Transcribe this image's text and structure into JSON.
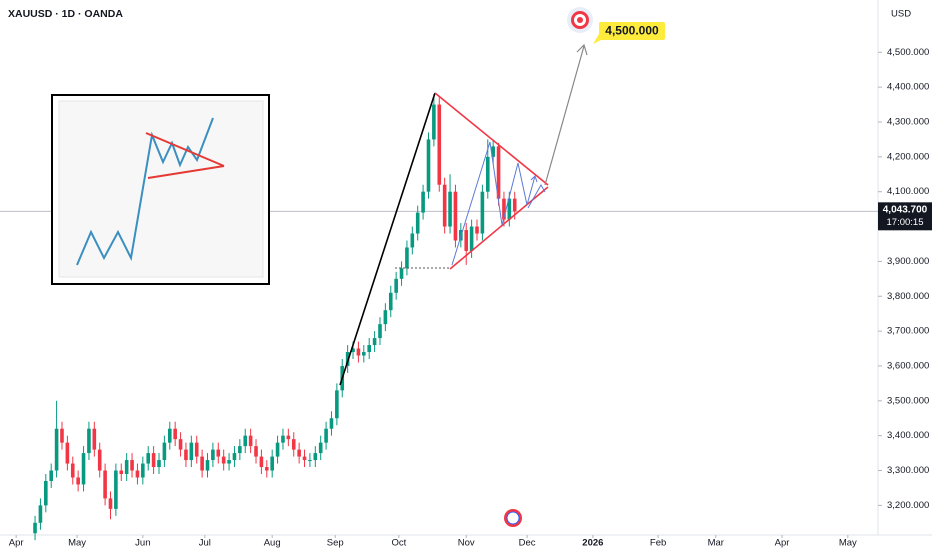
{
  "chart_data": {
    "type": "candlestick",
    "title": "XAUUSD · 1D · OANDA",
    "currency": "USD",
    "up_color": "#089981",
    "down_color": "#f23645",
    "x": [
      0,
      1,
      2,
      3,
      4,
      5,
      6,
      7,
      8,
      9,
      10,
      11,
      12,
      13,
      14,
      15,
      16,
      17,
      18,
      19,
      20,
      21,
      22,
      23,
      24,
      25,
      26,
      27,
      28,
      29,
      30,
      31,
      32,
      33,
      34,
      35,
      36,
      37,
      38,
      39,
      40,
      41,
      42,
      43,
      44,
      45,
      46,
      47,
      48,
      49,
      50,
      51,
      52,
      53,
      54,
      55,
      56,
      57,
      58,
      59,
      60,
      61,
      62,
      63,
      64,
      65,
      66,
      67,
      68,
      69,
      70,
      71,
      72,
      73,
      74,
      75,
      76,
      77,
      78,
      79,
      80,
      81,
      82,
      83,
      84,
      85,
      86,
      87,
      88,
      89
    ],
    "open": [
      3120,
      3150,
      3200,
      3270,
      3300,
      3420,
      3380,
      3320,
      3280,
      3260,
      3350,
      3420,
      3360,
      3300,
      3220,
      3190,
      3300,
      3290,
      3330,
      3300,
      3280,
      3320,
      3350,
      3310,
      3330,
      3380,
      3420,
      3390,
      3360,
      3330,
      3380,
      3340,
      3300,
      3330,
      3360,
      3340,
      3320,
      3330,
      3350,
      3370,
      3400,
      3370,
      3340,
      3310,
      3300,
      3340,
      3380,
      3400,
      3390,
      3360,
      3340,
      3330,
      3330,
      3350,
      3380,
      3420,
      3450,
      3530,
      3600,
      3640,
      3650,
      3630,
      3640,
      3660,
      3680,
      3720,
      3760,
      3810,
      3850,
      3880,
      3940,
      3980,
      4040,
      4100,
      4250,
      4350,
      4120,
      4000,
      4100,
      3960,
      3990,
      3930,
      4000,
      3980,
      4100,
      4200,
      4230,
      4080,
      4020,
      4080
    ],
    "high": [
      3170,
      3220,
      3290,
      3320,
      3500,
      3440,
      3400,
      3340,
      3300,
      3370,
      3440,
      3440,
      3380,
      3320,
      3240,
      3320,
      3320,
      3350,
      3350,
      3320,
      3340,
      3370,
      3370,
      3350,
      3400,
      3440,
      3440,
      3410,
      3380,
      3400,
      3400,
      3360,
      3350,
      3380,
      3380,
      3360,
      3350,
      3370,
      3390,
      3420,
      3420,
      3390,
      3360,
      3330,
      3360,
      3400,
      3420,
      3420,
      3410,
      3380,
      3360,
      3350,
      3370,
      3400,
      3440,
      3470,
      3550,
      3620,
      3660,
      3670,
      3670,
      3660,
      3680,
      3700,
      3740,
      3780,
      3830,
      3870,
      3900,
      3960,
      4000,
      4060,
      4120,
      4270,
      4380,
      4370,
      4140,
      4150,
      4120,
      4010,
      4010,
      4020,
      4020,
      4120,
      4250,
      4250,
      4240,
      4100,
      4100,
      4100
    ],
    "low": [
      3100,
      3130,
      3180,
      3250,
      3280,
      3360,
      3300,
      3260,
      3240,
      3240,
      3330,
      3340,
      3280,
      3200,
      3160,
      3170,
      3270,
      3270,
      3280,
      3260,
      3260,
      3300,
      3290,
      3290,
      3310,
      3360,
      3370,
      3340,
      3310,
      3310,
      3320,
      3280,
      3280,
      3310,
      3320,
      3300,
      3300,
      3310,
      3330,
      3350,
      3350,
      3320,
      3290,
      3280,
      3280,
      3320,
      3360,
      3370,
      3340,
      3320,
      3310,
      3310,
      3310,
      3330,
      3360,
      3400,
      3430,
      3510,
      3580,
      3620,
      3610,
      3610,
      3620,
      3640,
      3660,
      3700,
      3740,
      3790,
      3830,
      3860,
      3920,
      3960,
      4020,
      4080,
      4230,
      4100,
      3980,
      3980,
      3940,
      3940,
      3890,
      3910,
      3960,
      3960,
      4080,
      4180,
      4060,
      4000,
      4000,
      4020
    ],
    "close": [
      3150,
      3200,
      3270,
      3300,
      3420,
      3380,
      3320,
      3280,
      3260,
      3350,
      3420,
      3360,
      3300,
      3220,
      3190,
      3300,
      3290,
      3330,
      3300,
      3280,
      3320,
      3350,
      3310,
      3330,
      3380,
      3420,
      3390,
      3360,
      3330,
      3380,
      3340,
      3300,
      3330,
      3360,
      3340,
      3320,
      3330,
      3350,
      3370,
      3400,
      3370,
      3340,
      3310,
      3300,
      3340,
      3380,
      3400,
      3390,
      3360,
      3340,
      3330,
      3330,
      3350,
      3380,
      3420,
      3450,
      3530,
      3600,
      3640,
      3650,
      3630,
      3640,
      3660,
      3680,
      3720,
      3760,
      3810,
      3850,
      3880,
      3940,
      3980,
      4040,
      4100,
      4250,
      4350,
      4120,
      4000,
      4100,
      3960,
      3990,
      3930,
      4000,
      3980,
      4100,
      4200,
      4230,
      4080,
      4020,
      4080,
      4043.7
    ],
    "xlim": [
      -6.5,
      156.4
    ],
    "xticks": [
      {
        "value": -3.5,
        "label": "Apr"
      },
      {
        "value": 7.8,
        "label": "May"
      },
      {
        "value": 20,
        "label": "Jun"
      },
      {
        "value": 31.5,
        "label": "Jul"
      },
      {
        "value": 44,
        "label": "Aug"
      },
      {
        "value": 55.7,
        "label": "Sep"
      },
      {
        "value": 67.5,
        "label": "Oct"
      },
      {
        "value": 80,
        "label": "Nov"
      },
      {
        "value": 91.3,
        "label": "Dec"
      },
      {
        "value": 103.5,
        "label": "2026"
      },
      {
        "value": 115.6,
        "label": "Feb"
      },
      {
        "value": 126.3,
        "label": "Mar"
      },
      {
        "value": 138.6,
        "label": "Apr"
      },
      {
        "value": 150.8,
        "label": "May"
      }
    ],
    "ylim": [
      3115,
      4650
    ],
    "yticks": [
      {
        "value": 3200,
        "label": "3,200.000"
      },
      {
        "value": 3300,
        "label": "3,300.000"
      },
      {
        "value": 3400,
        "label": "3,400.000"
      },
      {
        "value": 3500,
        "label": "3,500.000"
      },
      {
        "value": 3600,
        "label": "3,600.000"
      },
      {
        "value": 3700,
        "label": "3,700.000"
      },
      {
        "value": 3800,
        "label": "3,800.000"
      },
      {
        "value": 3900,
        "label": "3,900.000"
      },
      {
        "value": 4000,
        "label": "4,000.000"
      },
      {
        "value": 4100,
        "label": "4,100.000"
      },
      {
        "value": 4200,
        "label": "4,200.000"
      },
      {
        "value": 4300,
        "label": "4,300.000"
      },
      {
        "value": 4400,
        "label": "4,400.000"
      },
      {
        "value": 4500,
        "label": "4,500.000"
      }
    ],
    "last_price": {
      "value": 4043.7,
      "label": "4,043.700"
    },
    "countdown": "17:00:15",
    "target": {
      "value": 4500,
      "label": "4,500.000"
    }
  }
}
